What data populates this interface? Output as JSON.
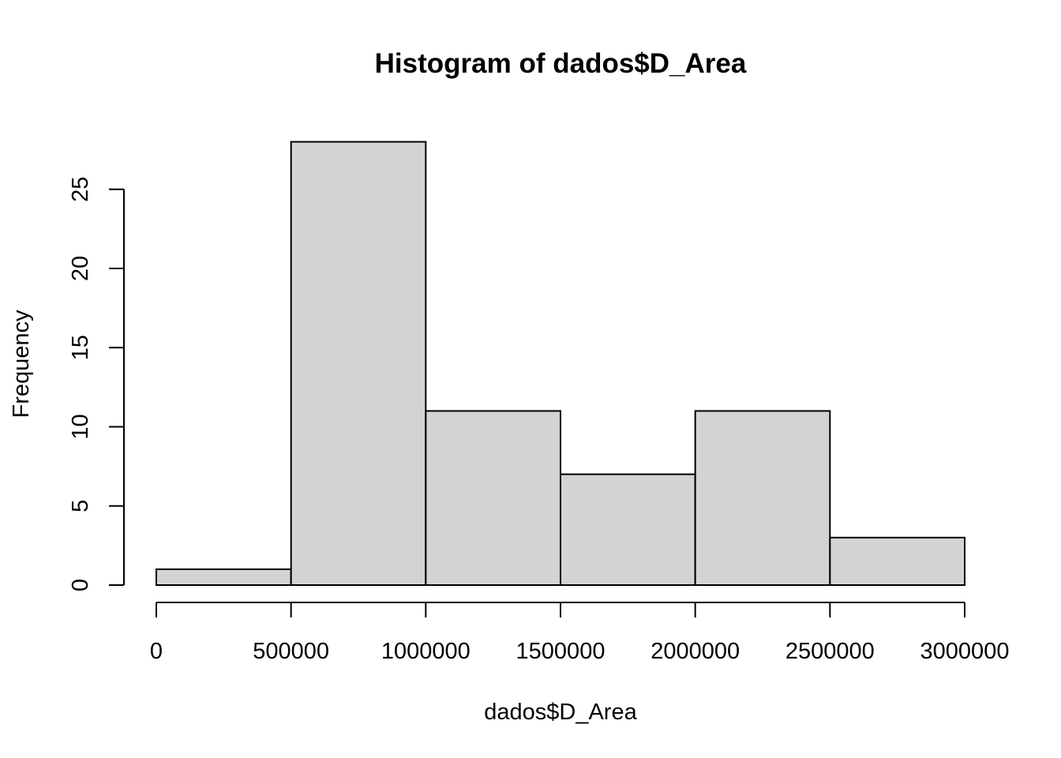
{
  "chart_data": {
    "type": "bar",
    "title": "Histogram of dados$D_Area",
    "xlabel": "dados$D_Area",
    "ylabel": "Frequency",
    "bins": [
      {
        "start": 0,
        "end": 500000,
        "count": 1
      },
      {
        "start": 500000,
        "end": 1000000,
        "count": 28
      },
      {
        "start": 1000000,
        "end": 1500000,
        "count": 11
      },
      {
        "start": 1500000,
        "end": 2000000,
        "count": 7
      },
      {
        "start": 2000000,
        "end": 2500000,
        "count": 11
      },
      {
        "start": 2500000,
        "end": 3000000,
        "count": 3
      }
    ],
    "xlim": [
      0,
      3000000
    ],
    "ylim": [
      0,
      28
    ],
    "x_ticks": [
      0,
      500000,
      1000000,
      1500000,
      2000000,
      2500000,
      3000000
    ],
    "x_tick_labels": [
      "0",
      "500000",
      "1000000",
      "1500000",
      "2000000",
      "2500000",
      "3000000"
    ],
    "y_ticks": [
      0,
      5,
      10,
      15,
      20,
      25
    ],
    "y_tick_labels": [
      "0",
      "5",
      "10",
      "15",
      "20",
      "25"
    ],
    "bar_color": "#d3d3d3",
    "grid": false
  }
}
